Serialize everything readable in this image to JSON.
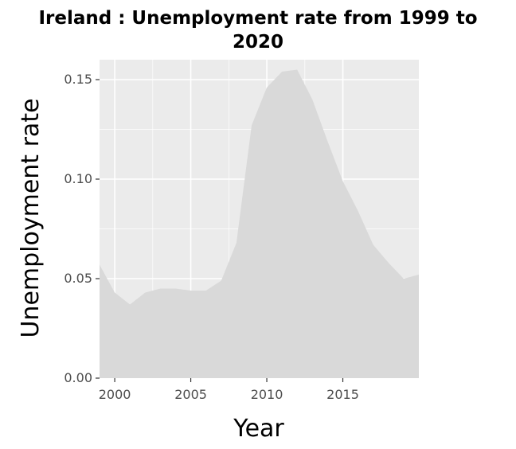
{
  "chart_data": {
    "type": "area",
    "title_line1": "Ireland : Unemployment rate from 1999 to",
    "title_line2": "2020",
    "xlabel": "Year",
    "ylabel": "Unemployment rate",
    "x": [
      1999,
      2000,
      2001,
      2002,
      2003,
      2004,
      2005,
      2006,
      2007,
      2008,
      2009,
      2010,
      2011,
      2012,
      2013,
      2014,
      2015,
      2016,
      2017,
      2018,
      2019,
      2020
    ],
    "series": [
      {
        "values": [
          0.057,
          0.043,
          0.037,
          0.043,
          0.045,
          0.045,
          0.044,
          0.044,
          0.049,
          0.068,
          0.127,
          0.146,
          0.154,
          0.155,
          0.14,
          0.119,
          0.099,
          0.084,
          0.067,
          0.058,
          0.05,
          0.052
        ],
        "color": "#d9d9d9"
      }
    ],
    "xlim": [
      1999,
      2020
    ],
    "ylim": [
      0,
      0.16
    ],
    "x_ticks": [
      "2000",
      "2005",
      "2010",
      "2015"
    ],
    "x_tick_values": [
      2000,
      2005,
      2010,
      2015
    ],
    "y_ticks": [
      "0.00",
      "0.05",
      "0.10",
      "0.15"
    ],
    "y_tick_values": [
      0,
      0.05,
      0.1,
      0.15
    ],
    "grid": true,
    "panel_color": "#ebebeb",
    "grid_color": "#ffffff"
  }
}
